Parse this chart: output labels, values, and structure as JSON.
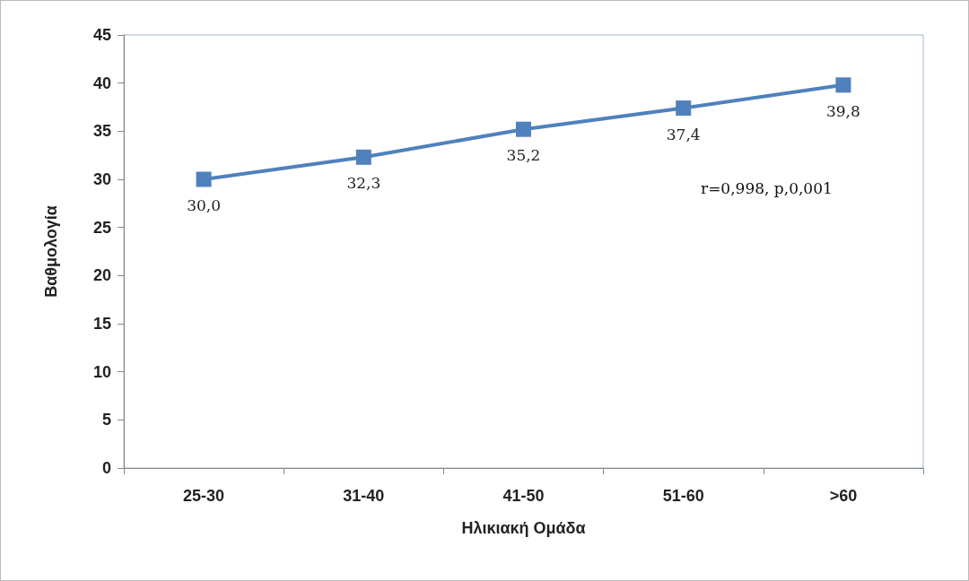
{
  "chart_data": {
    "type": "line",
    "xlabel": "Ηλικιακή Ομάδα",
    "ylabel": "Βαθμολογία",
    "categories": [
      "25-30",
      "31-40",
      "41-50",
      "51-60",
      ">60"
    ],
    "series": [
      {
        "color": "#4f81bd",
        "values": [
          30.0,
          32.3,
          35.2,
          37.4,
          39.8
        ],
        "value_labels": [
          "30,0",
          "32,3",
          "35,2",
          "37,4",
          "39,8"
        ]
      }
    ],
    "ylim": [
      0,
      45
    ],
    "yticks": [
      0,
      5,
      10,
      15,
      20,
      25,
      30,
      35,
      40,
      45
    ],
    "grid": false,
    "marker": "square",
    "line_style": "solid",
    "annotations": [
      "r=0,998, p,0,001"
    ]
  }
}
